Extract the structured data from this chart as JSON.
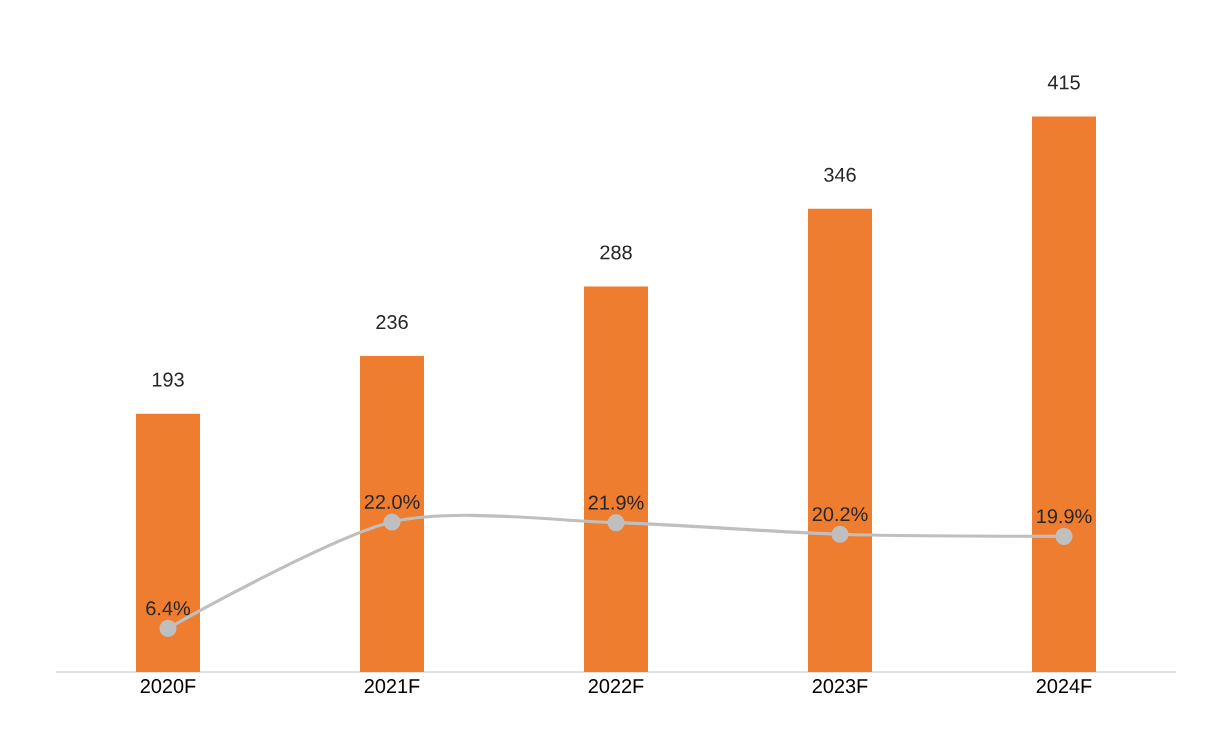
{
  "chart_data": {
    "type": "bar",
    "categories": [
      "2020F",
      "2021F",
      "2022F",
      "2023F",
      "2024F"
    ],
    "tick_labels": "x",
    "series": [
      {
        "color": "#ee7d2f",
        "values": [
          193,
          236,
          288,
          346,
          415
        ],
        "value_labels": [
          "193",
          "236",
          "288",
          "346",
          "415"
        ]
      },
      {
        "type": "line",
        "axis": "y2",
        "color": "#bfbfbf",
        "marker": "circle",
        "values": [
          6.4,
          22.0,
          21.9,
          20.2,
          19.9
        ],
        "value_labels": [
          "6.4%",
          "22.0%",
          "21.9%",
          "20.2%",
          "19.9%"
        ]
      }
    ]
  }
}
